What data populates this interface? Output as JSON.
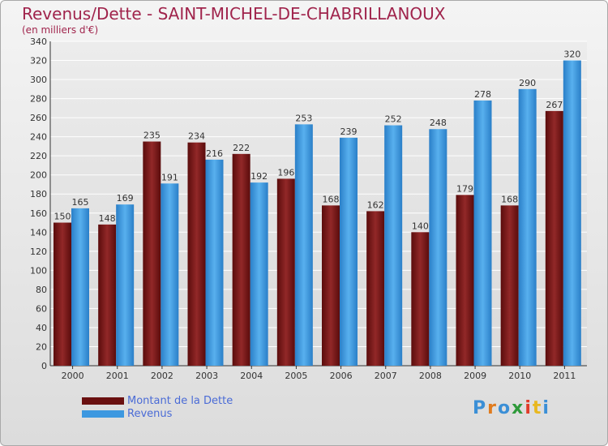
{
  "chart_data": {
    "type": "bar",
    "title": "Revenus/Dette - SAINT-MICHEL-DE-CHABRILLANOUX",
    "subtitle": "(en milliers d'€)",
    "categories": [
      "2000",
      "2001",
      "2002",
      "2003",
      "2004",
      "2005",
      "2006",
      "2007",
      "2008",
      "2009",
      "2010",
      "2011"
    ],
    "series": [
      {
        "name": "Montant de la Dette",
        "color": "#7b1a1a",
        "values": [
          150,
          148,
          235,
          234,
          222,
          196,
          168,
          162,
          140,
          179,
          168,
          267
        ]
      },
      {
        "name": "Revenus",
        "color": "#3d98e0",
        "values": [
          165,
          169,
          191,
          216,
          192,
          253,
          239,
          252,
          248,
          278,
          290,
          320
        ]
      }
    ],
    "ylim": [
      0,
      340
    ],
    "yticks": [
      0,
      20,
      40,
      60,
      80,
      100,
      120,
      140,
      160,
      180,
      200,
      220,
      240,
      260,
      280,
      300,
      320,
      340
    ],
    "grid": true,
    "legend_position": "bottom-left"
  },
  "logo": {
    "letters": [
      {
        "ch": "P",
        "color": "#3b8fd6"
      },
      {
        "ch": "r",
        "color": "#e07b1e"
      },
      {
        "ch": "o",
        "color": "#3b8fd6"
      },
      {
        "ch": "x",
        "color": "#2e9a3a"
      },
      {
        "ch": "i",
        "color": "#e03c2a"
      },
      {
        "ch": "t",
        "color": "#e8b820"
      },
      {
        "ch": "i",
        "color": "#3b8fd6"
      }
    ]
  }
}
